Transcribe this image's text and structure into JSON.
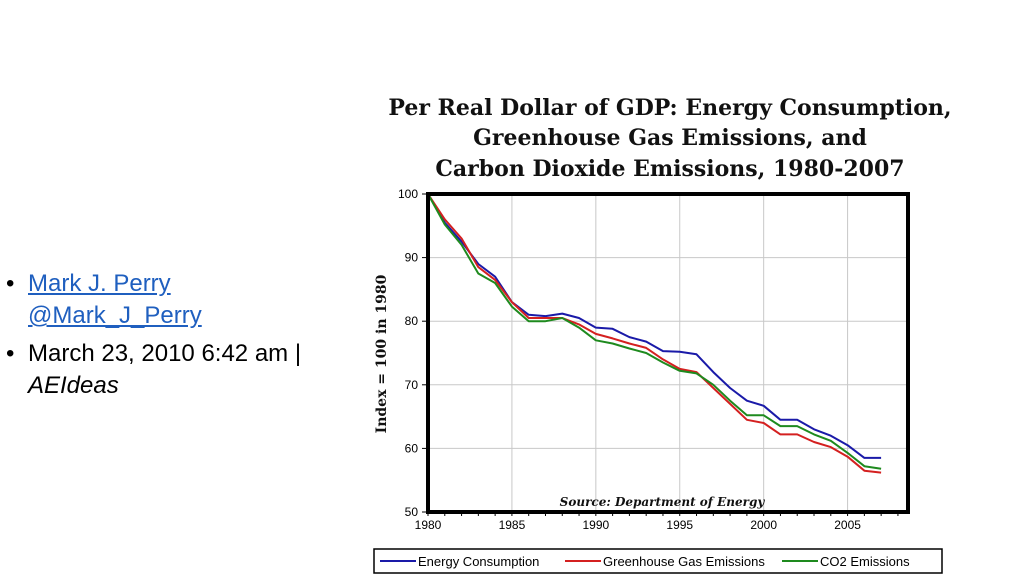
{
  "sidebar": {
    "author_link": "Mark J. Perry @Mark_J_Perry",
    "date_text": "March 23, 2010 6:42 am |",
    "source_name": "AEIdeas"
  },
  "chart_data": {
    "type": "line",
    "title": [
      "Per Real Dollar of GDP: Energy Consumption,",
      "Greenhouse Gas Emissions, and",
      "Carbon Dioxide Emissions, 1980-2007"
    ],
    "xlabel": "",
    "ylabel": "Index = 100 in 1980",
    "xlim": [
      1980,
      2008.6
    ],
    "ylim": [
      50,
      100
    ],
    "xticks": [
      1980,
      1985,
      1990,
      1995,
      2000,
      2005
    ],
    "yticks": [
      50,
      60,
      70,
      80,
      90,
      100
    ],
    "grid": true,
    "annotation": "Source: Department of Energy",
    "x": [
      1980,
      1981,
      1982,
      1983,
      1984,
      1985,
      1986,
      1987,
      1988,
      1989,
      1990,
      1991,
      1992,
      1993,
      1994,
      1995,
      1996,
      1997,
      1998,
      1999,
      2000,
      2001,
      2002,
      2003,
      2004,
      2005,
      2006,
      2007
    ],
    "series": [
      {
        "name": "Energy Consumption",
        "color": "#1a1aa8",
        "values": [
          100,
          95.5,
          92.5,
          89,
          87,
          83,
          81,
          80.8,
          81.2,
          80.5,
          79,
          78.8,
          77.5,
          76.8,
          75.3,
          75.2,
          74.8,
          72,
          69.5,
          67.5,
          66.7,
          64.5,
          64.5,
          63,
          62,
          60.5,
          58.5,
          58.5
        ]
      },
      {
        "name": "Greenhouse Gas Emissions",
        "color": "#d42020",
        "values": [
          100,
          96,
          93,
          88.5,
          86.5,
          83,
          80.5,
          80.5,
          80.5,
          79.5,
          78,
          77.3,
          76.5,
          75.8,
          74,
          72.5,
          72,
          69.5,
          67,
          64.5,
          64,
          62.2,
          62.2,
          61,
          60.2,
          58.7,
          56.5,
          56.2
        ]
      },
      {
        "name": "CO2 Emissions",
        "color": "#1e8a1e",
        "values": [
          100,
          95.2,
          92,
          87.5,
          86,
          82.3,
          80,
          80,
          80.5,
          79,
          77,
          76.5,
          75.7,
          75,
          73.5,
          72.2,
          71.8,
          70,
          67.5,
          65.2,
          65.2,
          63.5,
          63.5,
          62.2,
          61.2,
          59.3,
          57.2,
          56.8
        ]
      }
    ]
  }
}
